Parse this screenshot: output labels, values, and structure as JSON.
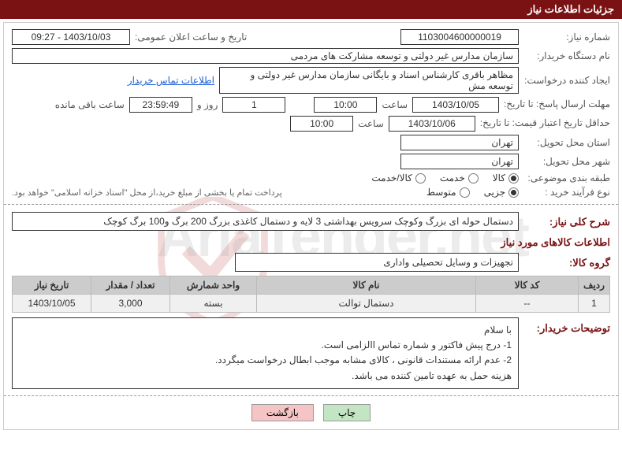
{
  "header": {
    "title": "جزئیات اطلاعات نیاز"
  },
  "need_number": {
    "label": "شماره نیاز:",
    "value": "1103004600000019"
  },
  "announce_datetime": {
    "label": "تاریخ و ساعت اعلان عمومی:",
    "value": "1403/10/03 - 09:27"
  },
  "buyer_org": {
    "label": "نام دستگاه خریدار:",
    "value": "سازمان مدارس غیر دولتی و توسعه مشارکت های مردمی"
  },
  "requester": {
    "label": "ایجاد کننده درخواست:",
    "value": "مظاهر باقری کارشناس اسناد و بایگانی سازمان مدارس غیر دولتی و توسعه مش"
  },
  "buyer_contact_link": "اطلاعات تماس خریدار",
  "response_deadline": {
    "label": "مهلت ارسال پاسخ: تا تاریخ:",
    "date": "1403/10/05",
    "time_label": "ساعت",
    "time": "10:00",
    "days": "1",
    "days_unit": "روز و",
    "remaining": "23:59:49",
    "remaining_label": "ساعت باقی مانده"
  },
  "price_validity": {
    "label": "حداقل تاریخ اعتبار قیمت: تا تاریخ:",
    "date": "1403/10/06",
    "time_label": "ساعت",
    "time": "10:00"
  },
  "delivery_province": {
    "label": "استان محل تحویل:",
    "value": "تهران"
  },
  "delivery_city": {
    "label": "شهر محل تحویل:",
    "value": "تهران"
  },
  "classification": {
    "label": "طبقه بندی موضوعی:",
    "options": [
      {
        "label": "کالا",
        "checked": true
      },
      {
        "label": "خدمت",
        "checked": false
      },
      {
        "label": "کالا/خدمت",
        "checked": false
      }
    ]
  },
  "purchase_type": {
    "label": "نوع فرآیند خرید :",
    "options": [
      {
        "label": "جزیی",
        "checked": true
      },
      {
        "label": "متوسط",
        "checked": false
      }
    ],
    "note": "پرداخت تمام یا بخشی از مبلغ خرید،از محل \"اسناد خزانه اسلامی\" خواهد بود."
  },
  "need_description": {
    "label": "شرح کلی نیاز:",
    "value": "دستمال حوله ای بزرگ وکوچک سرویس بهداشتی  3 لایه و دستمال کاغذی بزرگ 200 برگ و100 برگ کوچک"
  },
  "items_title": "اطلاعات کالاهای مورد نیاز",
  "item_group": {
    "label": "گروه کالا:",
    "value": "تجهیزات و وسایل تحصیلی واداری"
  },
  "table": {
    "columns": [
      "ردیف",
      "کد کالا",
      "نام کالا",
      "واحد شمارش",
      "تعداد / مقدار",
      "تاریخ نیاز"
    ],
    "widths": [
      "40px",
      "130px",
      "auto",
      "110px",
      "100px",
      "100px"
    ],
    "rows": [
      [
        "1",
        "--",
        "دستمال توالت",
        "بسته",
        "3,000",
        "1403/10/05"
      ]
    ]
  },
  "buyer_notes": {
    "label": "توضیحات خریدار:",
    "lines": [
      "با سلام",
      "1- درج پیش فاکتور و شماره تماس االزامی است.",
      "2- عدم ارائه مستندات قانونی ، کالای مشابه موجب ابطال درخواست میگردد.",
      "هزینه حمل به عهده تامین کننده می باشد."
    ]
  },
  "buttons": {
    "print": "چاپ",
    "back": "بازگشت"
  },
  "colors": {
    "header_bg": "#7a1214",
    "header_fg": "#ffffff",
    "border": "#333333",
    "table_header_bg": "#cccccc",
    "table_row_bg": "#f0f0f0",
    "link": "#1a5fd6",
    "btn_print_bg": "#c4e5c4",
    "btn_back_bg": "#f5c4c4"
  }
}
